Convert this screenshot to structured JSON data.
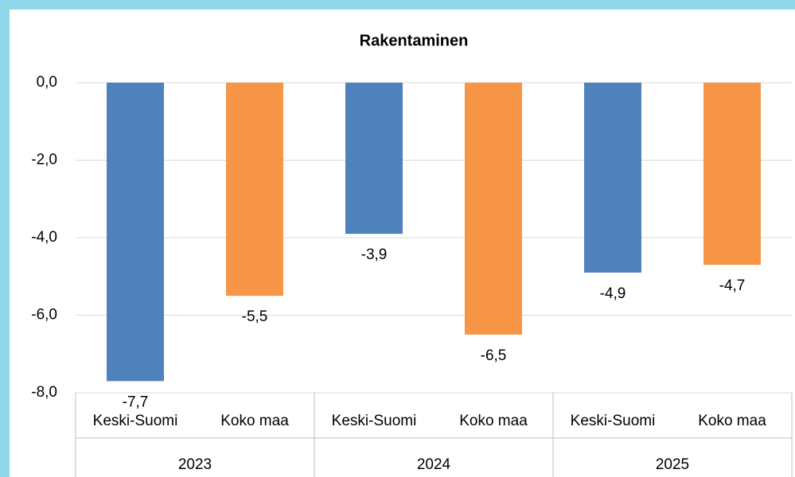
{
  "chart_data": {
    "type": "bar",
    "title": "Rakentaminen",
    "categories": [
      "Keski-Suomi",
      "Koko maa",
      "Keski-Suomi",
      "Koko maa",
      "Keski-Suomi",
      "Koko maa"
    ],
    "groups": [
      "2023",
      "2024",
      "2025"
    ],
    "values": [
      -7.7,
      -5.5,
      -3.9,
      -6.5,
      -4.9,
      -4.7
    ],
    "value_labels": [
      "-7,7",
      "-5,5",
      "-3,9",
      "-6,5",
      "-4,9",
      "-4,7"
    ],
    "colors": [
      "#4f81bd",
      "#f79646",
      "#4f81bd",
      "#f79646",
      "#4f81bd",
      "#f79646"
    ],
    "ylim": [
      -8,
      0
    ],
    "yticks": [
      {
        "value": 0,
        "label": "0,0"
      },
      {
        "value": -2,
        "label": "-2,0"
      },
      {
        "value": -4,
        "label": "-4,0"
      },
      {
        "value": -6,
        "label": "-6,0"
      },
      {
        "value": -8,
        "label": "-8,0"
      }
    ],
    "grid": true
  }
}
